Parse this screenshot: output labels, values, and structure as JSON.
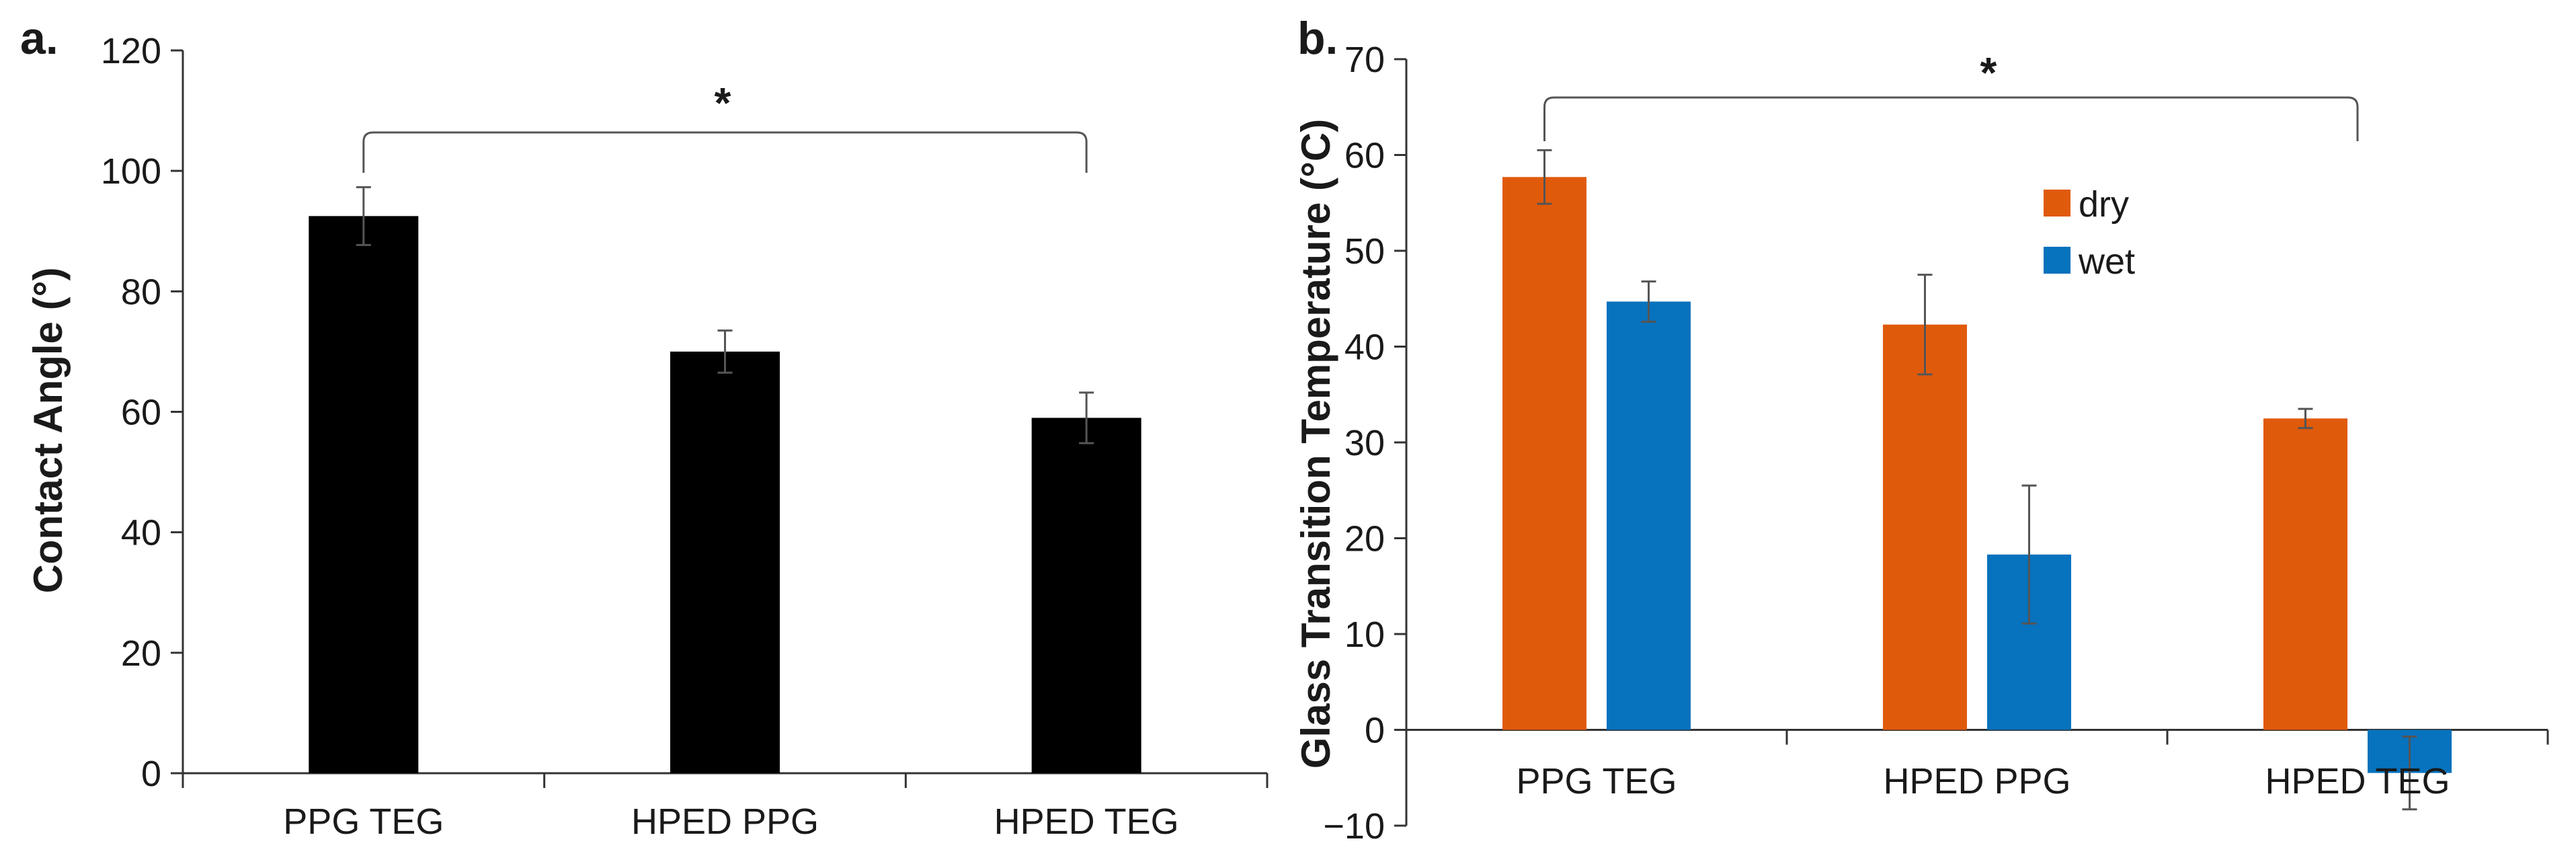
{
  "chart_data": [
    {
      "panel_label": "a.",
      "type": "bar",
      "categories": [
        "PPG TEG",
        "HPED PPG",
        "HPED TEG"
      ],
      "series": [
        {
          "name": "Contact Angle",
          "color": "#000000",
          "values": [
            92.5,
            70,
            59
          ],
          "errors": [
            4.8,
            3.5,
            4.2
          ]
        }
      ],
      "ylabel": "Contact Angle (°)",
      "xlabel": "",
      "ylim": [
        0,
        120
      ],
      "yticks": [
        "0",
        "20",
        "40",
        "60",
        "80",
        "100",
        "120"
      ],
      "grid": false,
      "significance": {
        "label": "*",
        "from": "PPG TEG",
        "to": "HPED TEG"
      }
    },
    {
      "panel_label": "b.",
      "type": "bar",
      "categories": [
        "PPG TEG",
        "HPED PPG",
        "HPED TEG"
      ],
      "series": [
        {
          "name": "dry",
          "color": "#e05a0c",
          "values": [
            57.7,
            42.3,
            32.5
          ],
          "errors": [
            2.8,
            5.2,
            1.0
          ]
        },
        {
          "name": "wet",
          "color": "#0772bd",
          "values": [
            44.7,
            18.3,
            -4.5
          ],
          "errors": [
            2.1,
            7.2,
            3.8
          ]
        }
      ],
      "ylabel": "Glass Transition Temperature (°C)",
      "xlabel": "",
      "ylim": [
        -10,
        70
      ],
      "yticks": [
        "−10",
        "0",
        "10",
        "20",
        "30",
        "40",
        "50",
        "60",
        "70"
      ],
      "grid": false,
      "legend_position": "upper-middle",
      "significance": {
        "label": "*",
        "from": "PPG TEG",
        "to": "HPED TEG"
      }
    }
  ]
}
